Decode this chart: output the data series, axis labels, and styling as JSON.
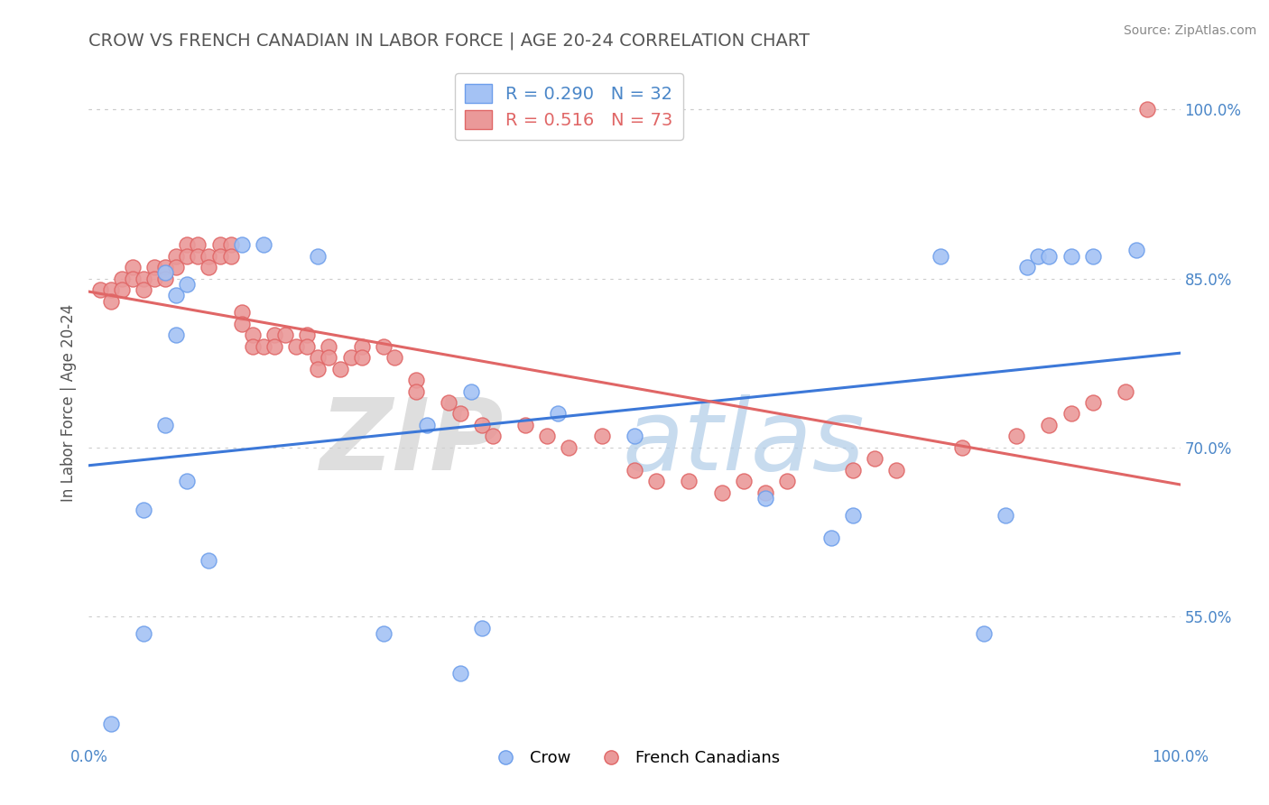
{
  "title": "CROW VS FRENCH CANADIAN IN LABOR FORCE | AGE 20-24 CORRELATION CHART",
  "source": "Source: ZipAtlas.com",
  "ylabel": "In Labor Force | Age 20-24",
  "xlim": [
    0.0,
    1.0
  ],
  "ylim": [
    0.44,
    1.04
  ],
  "xtick_positions": [
    0.0,
    0.25,
    0.5,
    0.75,
    1.0
  ],
  "xtick_labels": [
    "0.0%",
    "",
    "",
    "",
    "100.0%"
  ],
  "ytick_positions_right": [
    1.0,
    0.85,
    0.7,
    0.55
  ],
  "ytick_labels_right": [
    "100.0%",
    "85.0%",
    "70.0%",
    "55.0%"
  ],
  "crow_color": "#a4c2f4",
  "crow_edge_color": "#6d9eeb",
  "fc_color": "#ea9999",
  "fc_edge_color": "#e06666",
  "crow_R": "0.290",
  "crow_N": "32",
  "fc_R": "0.516",
  "fc_N": "73",
  "crow_line_color": "#3c78d8",
  "fc_line_color": "#e06666",
  "legend_crow": "Crow",
  "legend_fc": "French Canadians",
  "crow_scatter_x": [
    0.02,
    0.05,
    0.05,
    0.07,
    0.07,
    0.08,
    0.08,
    0.09,
    0.09,
    0.11,
    0.14,
    0.16,
    0.21,
    0.27,
    0.31,
    0.34,
    0.35,
    0.36,
    0.43,
    0.5,
    0.62,
    0.68,
    0.7,
    0.78,
    0.82,
    0.84,
    0.86,
    0.87,
    0.88,
    0.9,
    0.92,
    0.96
  ],
  "crow_scatter_y": [
    0.455,
    0.645,
    0.535,
    0.855,
    0.72,
    0.8,
    0.835,
    0.845,
    0.67,
    0.6,
    0.88,
    0.88,
    0.87,
    0.535,
    0.72,
    0.5,
    0.75,
    0.54,
    0.73,
    0.71,
    0.655,
    0.62,
    0.64,
    0.87,
    0.535,
    0.64,
    0.86,
    0.87,
    0.87,
    0.87,
    0.87,
    0.875
  ],
  "fc_scatter_x": [
    0.01,
    0.02,
    0.02,
    0.03,
    0.03,
    0.04,
    0.04,
    0.05,
    0.05,
    0.06,
    0.06,
    0.07,
    0.07,
    0.08,
    0.08,
    0.09,
    0.09,
    0.1,
    0.1,
    0.11,
    0.11,
    0.12,
    0.12,
    0.13,
    0.13,
    0.14,
    0.14,
    0.15,
    0.15,
    0.16,
    0.17,
    0.17,
    0.18,
    0.19,
    0.2,
    0.2,
    0.21,
    0.21,
    0.22,
    0.22,
    0.23,
    0.24,
    0.25,
    0.25,
    0.27,
    0.28,
    0.3,
    0.3,
    0.33,
    0.34,
    0.36,
    0.37,
    0.4,
    0.42,
    0.44,
    0.47,
    0.5,
    0.52,
    0.55,
    0.58,
    0.6,
    0.62,
    0.64,
    0.7,
    0.72,
    0.74,
    0.8,
    0.85,
    0.88,
    0.9,
    0.92,
    0.95,
    0.97
  ],
  "fc_scatter_y": [
    0.84,
    0.84,
    0.83,
    0.85,
    0.84,
    0.86,
    0.85,
    0.85,
    0.84,
    0.86,
    0.85,
    0.86,
    0.85,
    0.87,
    0.86,
    0.88,
    0.87,
    0.88,
    0.87,
    0.87,
    0.86,
    0.88,
    0.87,
    0.88,
    0.87,
    0.82,
    0.81,
    0.8,
    0.79,
    0.79,
    0.8,
    0.79,
    0.8,
    0.79,
    0.8,
    0.79,
    0.78,
    0.77,
    0.79,
    0.78,
    0.77,
    0.78,
    0.79,
    0.78,
    0.79,
    0.78,
    0.76,
    0.75,
    0.74,
    0.73,
    0.72,
    0.71,
    0.72,
    0.71,
    0.7,
    0.71,
    0.68,
    0.67,
    0.67,
    0.66,
    0.67,
    0.66,
    0.67,
    0.68,
    0.69,
    0.68,
    0.7,
    0.71,
    0.72,
    0.73,
    0.74,
    0.75,
    1.0
  ]
}
